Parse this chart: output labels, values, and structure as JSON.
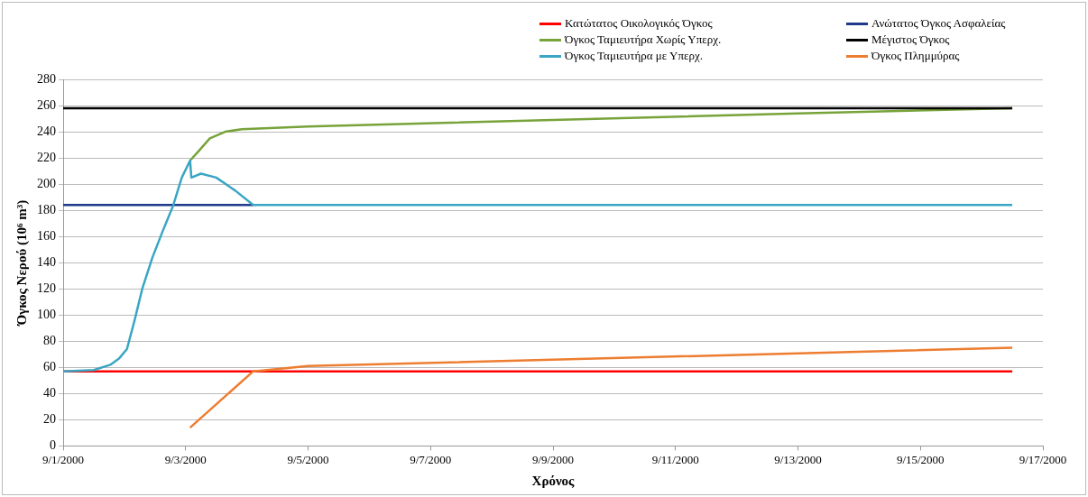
{
  "chart_data": {
    "type": "line",
    "xlabel": "Χρόνος",
    "ylabel": "Όγκος Νερού (10⁶ m³)",
    "ylim": [
      0,
      280
    ],
    "yticks": [
      0,
      20,
      40,
      60,
      80,
      100,
      120,
      140,
      160,
      180,
      200,
      220,
      240,
      260,
      280
    ],
    "xlim": [
      "2000-09-01",
      "2000-09-17"
    ],
    "xticks": [
      {
        "value": "2000-09-01",
        "label": "9/1/2000"
      },
      {
        "value": "2000-09-03",
        "label": "9/3/2000"
      },
      {
        "value": "2000-09-05",
        "label": "9/5/2000"
      },
      {
        "value": "2000-09-07",
        "label": "9/7/2000"
      },
      {
        "value": "2000-09-09",
        "label": "9/9/2000"
      },
      {
        "value": "2000-09-11",
        "label": "9/11/2000"
      },
      {
        "value": "2000-09-13",
        "label": "9/13/2000"
      },
      {
        "value": "2000-09-15",
        "label": "9/15/2000"
      },
      {
        "value": "2000-09-17",
        "label": "9/17/2000"
      }
    ],
    "grid": "y",
    "legend": "top right",
    "marker": "none",
    "line_style": "solid",
    "series": [
      {
        "name": "Κατώτατος Οικολογικός Όγκος",
        "color": "#ff0000",
        "x": [
          "2000-09-01",
          "2000-09-16T12:00"
        ],
        "values": [
          57,
          57
        ]
      },
      {
        "name": "Ανώτατος Όγκος Ασφαλείας",
        "color": "#1f3a8a",
        "x": [
          "2000-09-01",
          "2000-09-04T02:30"
        ],
        "values": [
          184,
          184
        ]
      },
      {
        "name": "Όγκος Ταμιευτήρα Χωρίς Υπερχ.",
        "color": "#77a33a",
        "x": [
          "2000-09-03T01:45",
          "2000-09-03T05:00",
          "2000-09-03T09:30",
          "2000-09-03T15:30",
          "2000-09-03T22:00",
          "2000-09-05",
          "2000-09-09",
          "2000-09-13",
          "2000-09-16T12:00"
        ],
        "values": [
          218,
          225,
          235,
          240,
          242,
          244,
          249,
          254,
          258
        ]
      },
      {
        "name": "Μέγιστος Όγκος",
        "color": "#000000",
        "x": [
          "2000-09-01",
          "2000-09-16T12:00"
        ],
        "values": [
          258,
          258
        ]
      },
      {
        "name": "Όγκος Ταμιευτήρα με Υπερχ.",
        "color": "#3aa6c4",
        "x": [
          "2000-09-01",
          "2000-09-01T12:00",
          "2000-09-01T18:30",
          "2000-09-01T22:00",
          "2000-09-02T01:00",
          "2000-09-02T04:00",
          "2000-09-02T07:00",
          "2000-09-02T11:00",
          "2000-09-02T15:00",
          "2000-09-02T19:00",
          "2000-09-02T22:30",
          "2000-09-03T01:45",
          "2000-09-03T02:15",
          "2000-09-03T06:00",
          "2000-09-03T12:00",
          "2000-09-03T19:30",
          "2000-09-04T02:30",
          "2000-09-16T12:00"
        ],
        "values": [
          57,
          58,
          62,
          67,
          74,
          96,
          120,
          144,
          164,
          183,
          205,
          218,
          205,
          208,
          205,
          195,
          184,
          184
        ]
      },
      {
        "name": "Όγκος Πλημμύρας",
        "color": "#ed7d31",
        "x": [
          "2000-09-03T01:45",
          "2000-09-04T02:30",
          "2000-09-05",
          "2000-09-16T12:00"
        ],
        "values": [
          14,
          57,
          61,
          75
        ]
      }
    ]
  }
}
